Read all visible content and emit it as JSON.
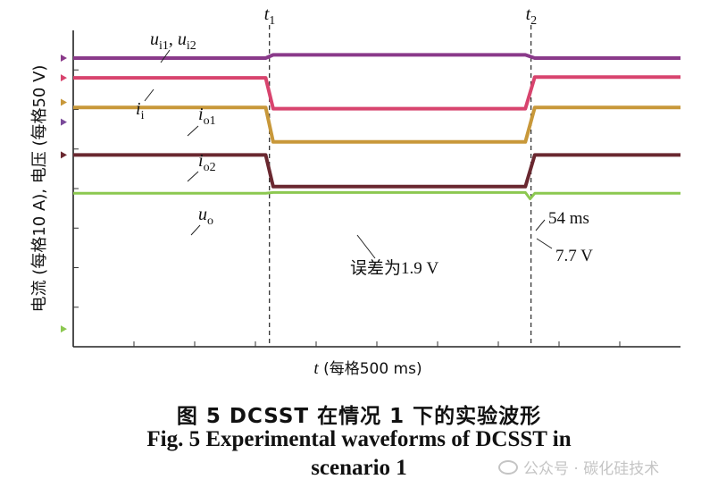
{
  "chart_data": {
    "type": "line",
    "ylabel": "电流 (每格10 A), 电压 (每格50 V)",
    "xlabel_var": "t",
    "xlabel_rest": " (每格500 ms)",
    "time_markers": [
      {
        "sub": "1",
        "x": 0
      },
      {
        "sub": "2",
        "x": 1.4
      }
    ],
    "xlim": [
      -1.05,
      2.2
    ],
    "ylim": [
      0,
      8
    ],
    "grid": false,
    "series": [
      {
        "name": "u_i1, u_i2",
        "color": "#8a3a8a",
        "x": [
          -1.05,
          -0.02,
          0.02,
          1.37,
          1.42,
          2.2
        ],
        "y": [
          7.3,
          7.3,
          7.38,
          7.38,
          7.3,
          7.3
        ],
        "width": 4
      },
      {
        "name": "i_i",
        "color": "#d8446e",
        "x": [
          -1.05,
          -0.02,
          0.02,
          1.37,
          1.42,
          2.2
        ],
        "y": [
          6.8,
          6.8,
          6.02,
          6.02,
          6.82,
          6.82
        ],
        "width": 4
      },
      {
        "name": "i_o1",
        "color": "#c8983a",
        "x": [
          -1.05,
          -0.02,
          0.02,
          1.37,
          1.42,
          2.2
        ],
        "y": [
          6.05,
          6.05,
          5.18,
          5.18,
          6.05,
          6.05
        ],
        "width": 4
      },
      {
        "name": "i_o2",
        "color": "#6a2830",
        "x": [
          -1.05,
          -0.02,
          0.02,
          1.37,
          1.42,
          2.2
        ],
        "y": [
          4.85,
          4.85,
          4.05,
          4.05,
          4.85,
          4.85
        ],
        "width": 4
      },
      {
        "name": "u_o",
        "color": "#8cc850",
        "x": [
          -1.05,
          -0.02,
          0.02,
          1.37,
          1.395,
          1.42,
          2.2
        ],
        "y": [
          3.88,
          3.88,
          3.9,
          3.9,
          3.74,
          3.88,
          3.88
        ],
        "width": 3
      }
    ],
    "channel_markers": [
      {
        "color": "#8a3a8a",
        "y": 7.3
      },
      {
        "color": "#d8446e",
        "y": 6.8
      },
      {
        "color": "#c8983a",
        "y": 6.18
      },
      {
        "color": "#7a4a9a",
        "y": 5.68
      },
      {
        "color": "#6a2830",
        "y": 4.85
      },
      {
        "color": "#8cc850",
        "y": 0.45
      }
    ],
    "annotations": [
      {
        "text": "误差为1.9 V"
      },
      {
        "text": "54 ms"
      },
      {
        "text": "7.7 V"
      }
    ],
    "series_labels": [
      {
        "base": "u",
        "sub": "i1",
        "sep": ", ",
        "base2": "u",
        "sub2": "i2"
      },
      {
        "base": "i",
        "sub": "i"
      },
      {
        "base": "i",
        "sub": "o1"
      },
      {
        "base": "i",
        "sub": "o2"
      },
      {
        "base": "u",
        "sub": "o"
      }
    ]
  },
  "caption": {
    "cn": "图 5   DCSST 在情况 1 下的实验波形",
    "en_line1": "Fig. 5    Experimental waveforms of DCSST in",
    "en_line2": "scenario 1"
  },
  "watermark": {
    "text": "公众号 · 碳化硅技术"
  }
}
